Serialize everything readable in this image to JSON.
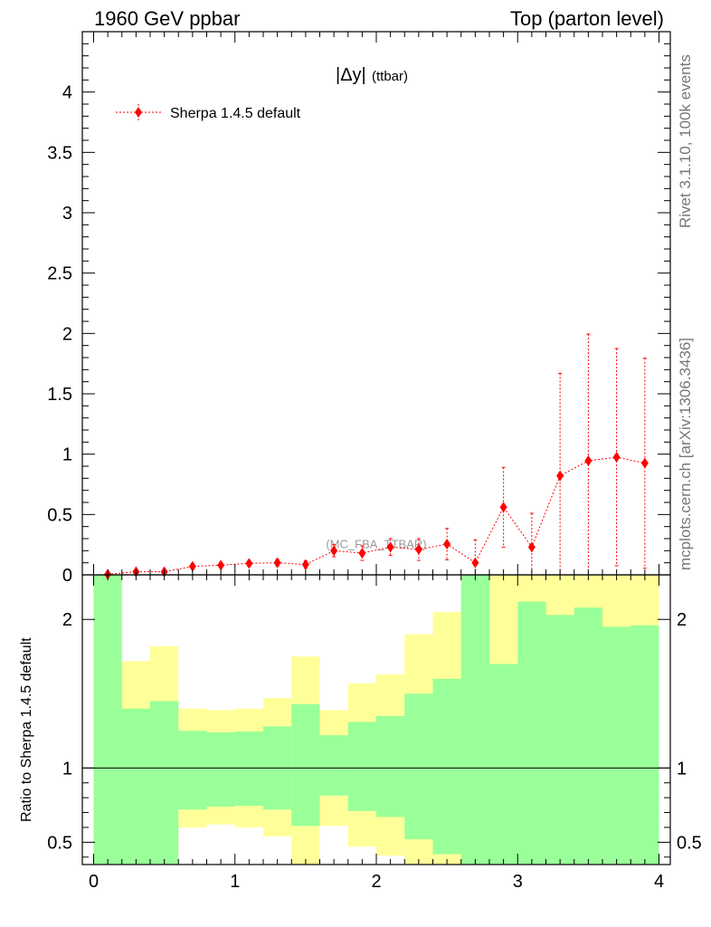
{
  "header": {
    "left": "1960 GeV ppbar",
    "right": "Top (parton level)"
  },
  "side": {
    "top": "Rivet 3.1.10,  100k events",
    "bottom": "mcplots.cern.ch [arXiv:1306.3436]"
  },
  "chart_data": [
    {
      "type": "scatter",
      "title": "|Δy| (ttbar)",
      "title_main": "|Δy|",
      "title_sub": "(ttbar)",
      "watermark": "(MC_FBA_TTBAR)",
      "legend_position": "top-left",
      "xlim": [
        -0.08,
        4.08
      ],
      "ylim": [
        0,
        4.5
      ],
      "x_ticks": [
        0,
        1,
        2,
        3,
        4
      ],
      "x_tick_labels": [
        "0",
        "1",
        "2",
        "3",
        "4"
      ],
      "y_ticks": [
        0,
        0.5,
        1,
        1.5,
        2,
        2.5,
        3,
        3.5,
        4
      ],
      "y_tick_labels": [
        "0",
        "0.5",
        "1",
        "1.5",
        "2",
        "2.5",
        "3",
        "3.5",
        "4"
      ],
      "series": [
        {
          "name": "Sherpa 1.4.5 default",
          "color": "#ff0000",
          "x": [
            0.1,
            0.3,
            0.5,
            0.7,
            0.9,
            1.1,
            1.3,
            1.5,
            1.7,
            1.9,
            2.1,
            2.3,
            2.5,
            2.7,
            2.9,
            3.1,
            3.3,
            3.5,
            3.7,
            3.9
          ],
          "y": [
            0.005,
            0.025,
            0.025,
            0.07,
            0.08,
            0.095,
            0.1,
            0.085,
            0.2,
            0.18,
            0.23,
            0.21,
            0.255,
            0.1,
            0.56,
            0.23,
            0.82,
            0.945,
            0.975,
            0.925
          ],
          "err_up": [
            0.003,
            0.008,
            0.01,
            0.02,
            0.02,
            0.024,
            0.028,
            0.03,
            0.05,
            0.06,
            0.07,
            0.09,
            0.13,
            0.19,
            0.33,
            0.28,
            0.85,
            1.05,
            0.9,
            0.87
          ],
          "err_dn": [
            0.003,
            0.008,
            0.01,
            0.02,
            0.02,
            0.024,
            0.028,
            0.03,
            0.05,
            0.06,
            0.07,
            0.09,
            0.13,
            0.1,
            0.33,
            0.23,
            0.82,
            0.945,
            0.9,
            0.87
          ]
        }
      ]
    },
    {
      "type": "area",
      "ylabel": "Ratio to Sherpa 1.4.5 default",
      "xlim": [
        -0.08,
        4.08
      ],
      "ylim": [
        0.35,
        2.3
      ],
      "y_ticks": [
        0.5,
        1,
        2
      ],
      "y_tick_labels": [
        "0.5",
        "1",
        "2"
      ],
      "reference_line": 1,
      "bin_edges": [
        0,
        0.2,
        0.4,
        0.6,
        0.8,
        1.0,
        1.2,
        1.4,
        1.6,
        1.8,
        2.0,
        2.2,
        2.4,
        2.6,
        2.8,
        3.0,
        3.2,
        3.4,
        3.6,
        3.8,
        4.0
      ],
      "bands": [
        {
          "name": "stat",
          "color": "#99ff99",
          "upper": [
            2.3,
            1.4,
            1.45,
            1.25,
            1.24,
            1.245,
            1.28,
            1.43,
            1.22,
            1.31,
            1.35,
            1.5,
            1.6,
            2.3,
            1.7,
            2.12,
            2.03,
            2.08,
            1.95,
            1.96
          ],
          "lower": [
            0.35,
            0.35,
            0.35,
            0.72,
            0.74,
            0.745,
            0.72,
            0.61,
            0.815,
            0.71,
            0.67,
            0.52,
            0.42,
            0.35,
            0.35,
            0.35,
            0.35,
            0.35,
            0.35,
            0.35
          ]
        },
        {
          "name": "total",
          "color": "#ffff99",
          "upper": [
            2.3,
            1.72,
            1.82,
            1.4,
            1.39,
            1.4,
            1.47,
            1.75,
            1.39,
            1.57,
            1.63,
            1.9,
            2.05,
            2.3,
            2.3,
            2.3,
            2.3,
            2.3,
            2.3,
            2.3
          ],
          "lower": [
            0.35,
            0.35,
            0.35,
            0.6,
            0.62,
            0.6,
            0.54,
            0.35,
            0.61,
            0.47,
            0.41,
            0.35,
            0.35,
            0.35,
            0.35,
            0.35,
            0.35,
            0.35,
            0.35,
            0.35
          ]
        }
      ]
    }
  ]
}
